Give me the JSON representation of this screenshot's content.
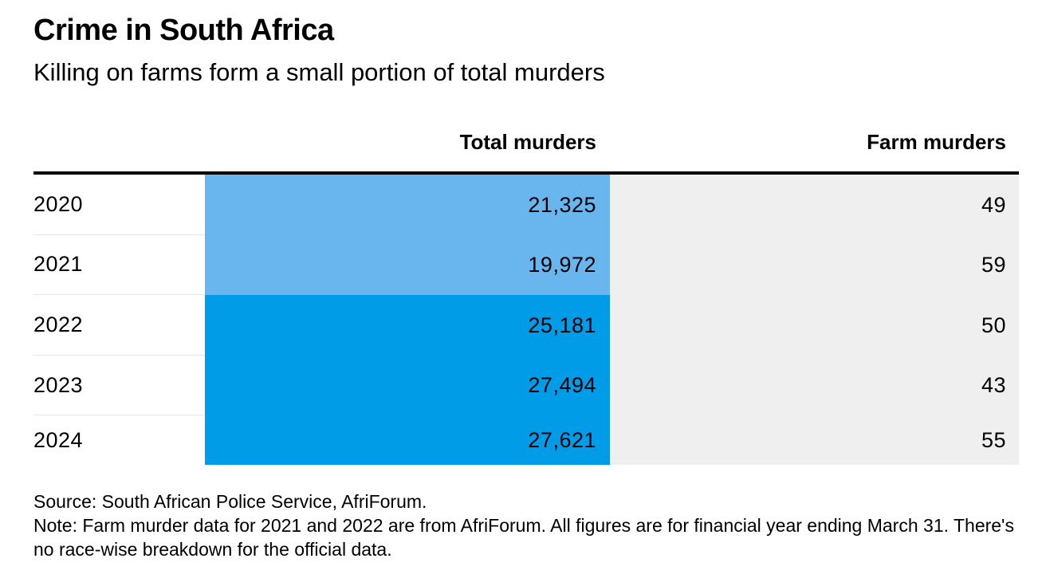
{
  "title": "Crime in South Africa",
  "subtitle": "Killing on farms form a small portion of total murders",
  "columns": {
    "year": "",
    "total": "Total murders",
    "farm": "Farm murders"
  },
  "colors": {
    "light_blue": "#69b6ef",
    "dark_blue": "#009ce8",
    "farm_bg": "#efefef",
    "rule": "#000000"
  },
  "chart_data": {
    "type": "table",
    "title": "Crime in South Africa",
    "subtitle": "Killing on farms form a small portion of total murders",
    "columns": [
      "",
      "Total murders",
      "Farm murders"
    ],
    "rows": [
      {
        "year": "2020",
        "total": "21,325",
        "total_value": 21325,
        "total_shade": "light",
        "farm": "49"
      },
      {
        "year": "2021",
        "total": "19,972",
        "total_value": 19972,
        "total_shade": "light",
        "farm": "59"
      },
      {
        "year": "2022",
        "total": "25,181",
        "total_value": 25181,
        "total_shade": "dark",
        "farm": "50"
      },
      {
        "year": "2023",
        "total": "27,494",
        "total_value": 27494,
        "total_shade": "dark",
        "farm": "43"
      },
      {
        "year": "2024",
        "total": "27,621",
        "total_value": 27621,
        "total_shade": "dark",
        "farm": "55"
      }
    ]
  },
  "footer": {
    "source": "Source: South African Police Service, AfriForum.",
    "note": "Note: Farm murder data for 2021 and 2022 are from AfriForum. All figures are for financial year ending March 31. There's no race-wise breakdown for the official data."
  }
}
